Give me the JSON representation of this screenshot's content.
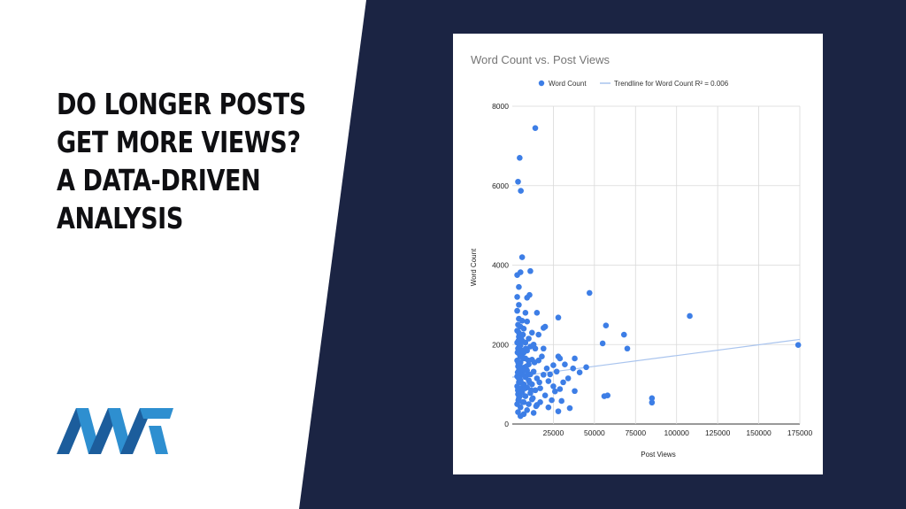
{
  "headline": {
    "lines": [
      "DO LONGER POSTS",
      "GET MORE VIEWS?",
      "A DATA-DRIVEN",
      "ANALYSIS"
    ]
  },
  "colors": {
    "navy": "#1b2443",
    "point": "#3d7ee6",
    "trendline": "#a9c4ee",
    "grid": "#d9d9d9",
    "logo_dark": "#1c5d9c",
    "logo_light": "#2e8fd0"
  },
  "logo": {
    "icon": "mt-logo-icon"
  },
  "chart_data": {
    "type": "scatter",
    "title": "Word Count vs. Post Views",
    "xlabel": "Post Views",
    "ylabel": "Word Count",
    "xlim": [
      0,
      175000
    ],
    "ylim": [
      0,
      8000
    ],
    "xticks": [
      "25000",
      "50000",
      "75000",
      "100000",
      "125000",
      "150000",
      "175000"
    ],
    "yticks": [
      "0",
      "2000",
      "4000",
      "6000",
      "8000"
    ],
    "grid": true,
    "legend_position": "top",
    "legend": {
      "series_label": "Word Count",
      "trend_label": "Trendline for Word Count R² = 0.006"
    },
    "trendline": {
      "x": [
        0,
        175000
      ],
      "y": [
        1180,
        2130
      ]
    },
    "series": [
      {
        "name": "Word Count",
        "points": [
          [
            14000,
            7450
          ],
          [
            4500,
            6700
          ],
          [
            3500,
            6100
          ],
          [
            5200,
            5870
          ],
          [
            6000,
            4200
          ],
          [
            11000,
            3850
          ],
          [
            5000,
            3820
          ],
          [
            3000,
            3750
          ],
          [
            4000,
            3450
          ],
          [
            9000,
            3180
          ],
          [
            3000,
            3200
          ],
          [
            10500,
            3250
          ],
          [
            47000,
            3300
          ],
          [
            4000,
            3000
          ],
          [
            3000,
            2850
          ],
          [
            8000,
            2800
          ],
          [
            15000,
            2800
          ],
          [
            108000,
            2720
          ],
          [
            4000,
            2650
          ],
          [
            6000,
            2600
          ],
          [
            9000,
            2580
          ],
          [
            28000,
            2680
          ],
          [
            20000,
            2450
          ],
          [
            57000,
            2480
          ],
          [
            19000,
            2420
          ],
          [
            3500,
            2500
          ],
          [
            5000,
            2450
          ],
          [
            7000,
            2400
          ],
          [
            12000,
            2300
          ],
          [
            16000,
            2250
          ],
          [
            68000,
            2250
          ],
          [
            55000,
            2030
          ],
          [
            4000,
            2200
          ],
          [
            6000,
            2100
          ],
          [
            8000,
            2050
          ],
          [
            10000,
            2150
          ],
          [
            13000,
            2000
          ],
          [
            3000,
            2050
          ],
          [
            5000,
            1980
          ],
          [
            11000,
            1950
          ],
          [
            9000,
            1850
          ],
          [
            14000,
            1900
          ],
          [
            19000,
            1900
          ],
          [
            70000,
            1900
          ],
          [
            3500,
            1900
          ],
          [
            7000,
            1800
          ],
          [
            4500,
            1750
          ],
          [
            174000,
            1990
          ],
          [
            6000,
            1700
          ],
          [
            8000,
            1650
          ],
          [
            12000,
            1620
          ],
          [
            28000,
            1700
          ],
          [
            38000,
            1650
          ],
          [
            16000,
            1600
          ],
          [
            29000,
            1650
          ],
          [
            3000,
            1600
          ],
          [
            5000,
            1550
          ],
          [
            10000,
            1500
          ],
          [
            25000,
            1480
          ],
          [
            32000,
            1500
          ],
          [
            45000,
            1430
          ],
          [
            3500,
            1450
          ],
          [
            7000,
            1420
          ],
          [
            21000,
            1400
          ],
          [
            37000,
            1400
          ],
          [
            4000,
            1350
          ],
          [
            9000,
            1350
          ],
          [
            13000,
            1320
          ],
          [
            27000,
            1320
          ],
          [
            41000,
            1300
          ],
          [
            6000,
            1280
          ],
          [
            11000,
            1250
          ],
          [
            19000,
            1240
          ],
          [
            3000,
            1200
          ],
          [
            8000,
            1180
          ],
          [
            15000,
            1150
          ],
          [
            34000,
            1150
          ],
          [
            5000,
            1100
          ],
          [
            10000,
            1100
          ],
          [
            22000,
            1080
          ],
          [
            4000,
            1050
          ],
          [
            7000,
            1000
          ],
          [
            12000,
            1000
          ],
          [
            25000,
            950
          ],
          [
            3000,
            950
          ],
          [
            9000,
            920
          ],
          [
            17000,
            900
          ],
          [
            29000,
            880
          ],
          [
            5000,
            850
          ],
          [
            14000,
            850
          ],
          [
            26000,
            820
          ],
          [
            38000,
            830
          ],
          [
            6000,
            800
          ],
          [
            11000,
            780
          ],
          [
            3500,
            750
          ],
          [
            8000,
            700
          ],
          [
            20000,
            720
          ],
          [
            56000,
            700
          ],
          [
            58000,
            720
          ],
          [
            85000,
            650
          ],
          [
            4000,
            650
          ],
          [
            12000,
            620
          ],
          [
            24000,
            600
          ],
          [
            30000,
            580
          ],
          [
            7000,
            550
          ],
          [
            17000,
            550
          ],
          [
            85000,
            540
          ],
          [
            3000,
            500
          ],
          [
            10000,
            500
          ],
          [
            15000,
            480
          ],
          [
            5000,
            420
          ],
          [
            22000,
            420
          ],
          [
            35000,
            400
          ],
          [
            9000,
            350
          ],
          [
            28000,
            320
          ],
          [
            3500,
            300
          ],
          [
            7000,
            250
          ],
          [
            13000,
            280
          ],
          [
            5000,
            200
          ],
          [
            4000,
            2300
          ],
          [
            3000,
            2350
          ],
          [
            6500,
            2250
          ],
          [
            5500,
            2200
          ],
          [
            3800,
            2100
          ],
          [
            4200,
            1950
          ],
          [
            5800,
            1850
          ],
          [
            3200,
            1800
          ],
          [
            4800,
            1700
          ],
          [
            6800,
            1650
          ],
          [
            3600,
            1550
          ],
          [
            4400,
            1500
          ],
          [
            5600,
            1400
          ],
          [
            3300,
            1300
          ],
          [
            6200,
            1250
          ],
          [
            4700,
            1200
          ],
          [
            3900,
            1150
          ],
          [
            5300,
            1050
          ],
          [
            6600,
            950
          ],
          [
            4100,
            900
          ],
          [
            3400,
            850
          ],
          [
            5900,
            800
          ],
          [
            4600,
            700
          ],
          [
            3700,
            600
          ],
          [
            6300,
            550
          ],
          [
            8500,
            1450
          ],
          [
            9500,
            1250
          ],
          [
            10500,
            1050
          ],
          [
            11500,
            850
          ],
          [
            12500,
            650
          ],
          [
            13500,
            1550
          ],
          [
            8200,
            1900
          ],
          [
            9800,
            1600
          ],
          [
            7500,
            1350
          ],
          [
            7800,
            900
          ],
          [
            18000,
            1700
          ],
          [
            16500,
            1050
          ],
          [
            23000,
            1250
          ],
          [
            31000,
            1050
          ],
          [
            14500,
            450
          ]
        ]
      }
    ]
  }
}
